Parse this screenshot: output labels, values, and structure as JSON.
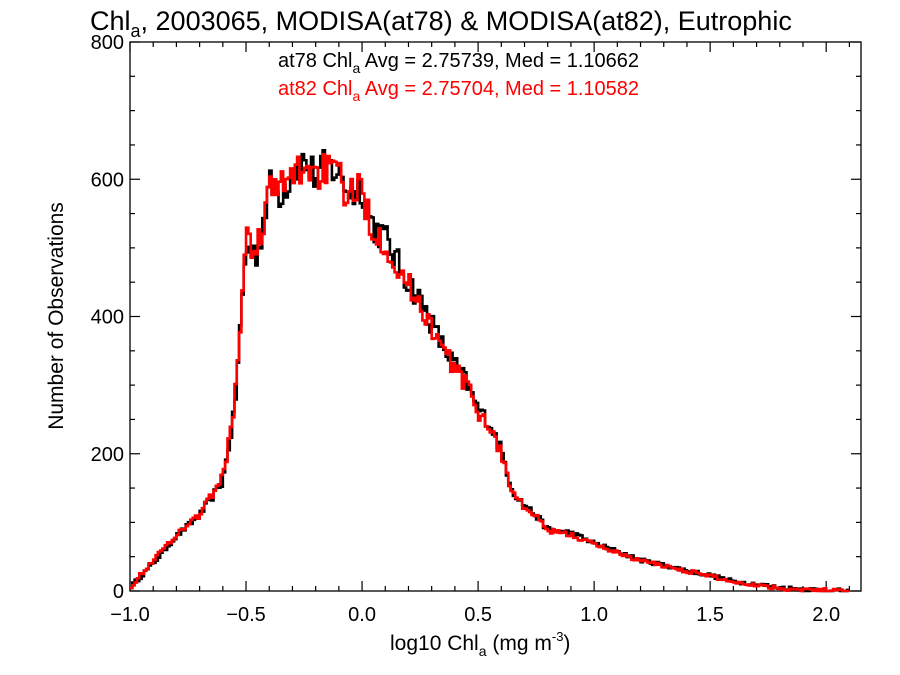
{
  "chart_data": {
    "type": "line",
    "title": "Chl",
    "title_sub": "a",
    "title_rest": ", 2003065, MODISA(at78) & MODISA(at82), Eutrophic",
    "xlabel_pre": "log10 Chl",
    "xlabel_sub": "a",
    "xlabel_mid": " (mg m",
    "xlabel_sup": "-3",
    "xlabel_post": ")",
    "ylabel": "Number of Observations",
    "xlim": [
      -1.0,
      2.15
    ],
    "ylim": [
      0,
      800
    ],
    "xticks": [
      -1.0,
      -0.5,
      0.0,
      0.5,
      1.0,
      1.5,
      2.0
    ],
    "xtick_labels": [
      "−1.0",
      "−0.5",
      "0.0",
      "0.5",
      "1.0",
      "1.5",
      "2.0"
    ],
    "yticks": [
      0,
      200,
      400,
      600,
      800
    ],
    "ytick_labels": [
      "0",
      "200",
      "400",
      "600",
      "800"
    ],
    "stats": [
      {
        "pre": "at78 Chl",
        "sub": "a",
        "post": " Avg = 2.75739, Med = 1.10662",
        "color": "#000000"
      },
      {
        "pre": "at82 Chl",
        "sub": "a",
        "post": " Avg = 2.75704, Med = 1.10582",
        "color": "#ff0000"
      }
    ],
    "series": [
      {
        "color": "#000000",
        "x": [
          -1.0,
          -0.9,
          -0.8,
          -0.7,
          -0.6,
          -0.55,
          -0.5,
          -0.45,
          -0.4,
          -0.35,
          -0.3,
          -0.25,
          -0.2,
          -0.15,
          -0.1,
          -0.05,
          0.0,
          0.05,
          0.1,
          0.15,
          0.2,
          0.25,
          0.3,
          0.35,
          0.4,
          0.45,
          0.5,
          0.55,
          0.6,
          0.65,
          0.7,
          0.75,
          0.8,
          0.9,
          1.0,
          1.1,
          1.2,
          1.3,
          1.4,
          1.5,
          1.6,
          1.7,
          1.8,
          1.9,
          2.0,
          2.1
        ],
        "values": [
          5,
          40,
          80,
          110,
          160,
          260,
          500,
          490,
          590,
          580,
          610,
          625,
          605,
          620,
          610,
          580,
          590,
          530,
          515,
          480,
          450,
          425,
          390,
          355,
          330,
          305,
          265,
          245,
          205,
          145,
          125,
          110,
          90,
          85,
          70,
          58,
          45,
          38,
          30,
          23,
          14,
          10,
          5,
          3,
          1,
          0
        ]
      },
      {
        "color": "#ff0000",
        "x": [
          -1.0,
          -0.9,
          -0.8,
          -0.7,
          -0.6,
          -0.55,
          -0.5,
          -0.45,
          -0.4,
          -0.35,
          -0.3,
          -0.25,
          -0.2,
          -0.15,
          -0.1,
          -0.05,
          0.0,
          0.05,
          0.1,
          0.15,
          0.2,
          0.25,
          0.3,
          0.35,
          0.4,
          0.45,
          0.5,
          0.55,
          0.6,
          0.65,
          0.7,
          0.75,
          0.8,
          0.9,
          1.0,
          1.1,
          1.2,
          1.3,
          1.4,
          1.5,
          1.6,
          1.7,
          1.8,
          1.9,
          2.0,
          2.1
        ],
        "values": [
          5,
          45,
          82,
          112,
          165,
          270,
          510,
          500,
          585,
          585,
          605,
          620,
          610,
          615,
          600,
          575,
          585,
          525,
          510,
          470,
          445,
          420,
          385,
          350,
          325,
          300,
          262,
          240,
          200,
          142,
          122,
          108,
          88,
          82,
          68,
          56,
          44,
          37,
          29,
          22,
          13,
          9,
          4,
          2,
          1,
          0
        ]
      }
    ]
  }
}
